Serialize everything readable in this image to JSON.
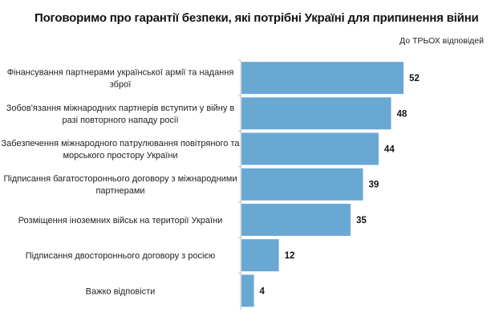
{
  "title": "Поговоримо про гарантії безпеки, які потрібні Україні для припинення війни",
  "note": "До ТРЬОХ відповідей",
  "chart_data": {
    "type": "bar",
    "orientation": "horizontal",
    "title": "Поговоримо про гарантії безпеки, які потрібні Україні для припинення війни",
    "subtitle": "До ТРЬОХ відповідей",
    "categories": [
      [
        "Фінансування партнерами української армії та надання",
        "зброї"
      ],
      [
        "Зобов'язання міжнародних партнерів вступити у війну в",
        "разі повторного нападу росії"
      ],
      [
        "Забезпечення міжнародного патрулювання повітряного та",
        "морського простору України"
      ],
      [
        "Підписання багатостороннього договору з міжнародними",
        "партнерами"
      ],
      [
        "Розміщення іноземних військ на території України"
      ],
      [
        "Підписання двостороннього договору з росією"
      ],
      [
        "Важко відповісти"
      ]
    ],
    "values": [
      52,
      48,
      44,
      39,
      35,
      12,
      4
    ],
    "xlim": [
      0,
      60
    ],
    "grid": false,
    "bar_color": "#6aa8d4"
  }
}
